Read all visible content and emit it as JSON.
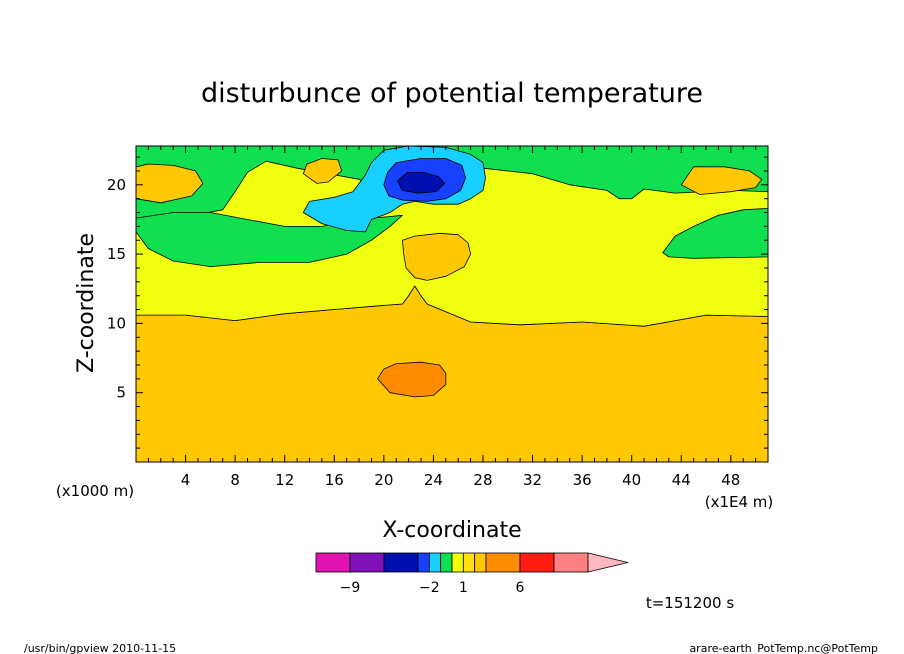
{
  "chart_data": {
    "type": "heatmap",
    "title": "disturbunce of potential temperature",
    "xlabel": "X-coordinate",
    "ylabel": "Z-coordinate",
    "x_unit": "(x1E4 m)",
    "y_unit": "(x1000 m)",
    "xlim": [
      0,
      51
    ],
    "ylim": [
      0,
      22.8
    ],
    "x_ticks": [
      4,
      8,
      12,
      16,
      20,
      24,
      28,
      32,
      36,
      40,
      44,
      48
    ],
    "y_ticks": [
      5,
      10,
      15,
      20
    ],
    "time_label": "t=151200 s",
    "colorbar": {
      "labels": [
        {
          "value": -9,
          "text": "−9"
        },
        {
          "value": -2,
          "text": "−2"
        },
        {
          "value": 1,
          "text": "1"
        },
        {
          "value": 6,
          "text": "6"
        }
      ],
      "bins": [
        {
          "lo": -12,
          "hi": -9,
          "color": "#e012b0"
        },
        {
          "lo": -9,
          "hi": -6,
          "color": "#8010b8"
        },
        {
          "lo": -6,
          "hi": -3,
          "color": "#0010b0"
        },
        {
          "lo": -3,
          "hi": -2,
          "color": "#1840ff"
        },
        {
          "lo": -2,
          "hi": -1,
          "color": "#18d0ff"
        },
        {
          "lo": -1,
          "hi": 0,
          "color": "#10e050"
        },
        {
          "lo": 0,
          "hi": 1,
          "color": "#f0ff10"
        },
        {
          "lo": 1,
          "hi": 2,
          "color": "#ffe010"
        },
        {
          "lo": 2,
          "hi": 3,
          "color": "#ffc800"
        },
        {
          "lo": 3,
          "hi": 6,
          "color": "#ff8c00"
        },
        {
          "lo": 6,
          "hi": 9,
          "color": "#ff1c10"
        },
        {
          "lo": 9,
          "hi": 12,
          "color": "#ff8080"
        }
      ],
      "overflow_color": "#ffb8c0"
    },
    "regions": [
      {
        "level": "2 to 3",
        "color": "#ffc800",
        "points": [
          [
            0,
            0
          ],
          [
            51,
            0
          ],
          [
            51,
            10.5
          ],
          [
            46,
            10.6
          ],
          [
            41,
            9.8
          ],
          [
            36,
            10.1
          ],
          [
            31,
            9.9
          ],
          [
            27,
            10.1
          ],
          [
            23.5,
            11.4
          ],
          [
            23,
            12
          ],
          [
            22.5,
            12.7
          ],
          [
            22,
            12
          ],
          [
            21.5,
            11.4
          ],
          [
            20,
            11.3
          ],
          [
            16,
            11
          ],
          [
            12,
            10.7
          ],
          [
            8,
            10.2
          ],
          [
            4,
            10.6
          ],
          [
            0,
            10.6
          ]
        ]
      },
      {
        "level": "0 to 1",
        "color": "#f0ff10",
        "points": [
          [
            0,
            10.6
          ],
          [
            4,
            10.6
          ],
          [
            8,
            10.2
          ],
          [
            12,
            10.7
          ],
          [
            16,
            11
          ],
          [
            20,
            11.3
          ],
          [
            21.5,
            11.4
          ],
          [
            22,
            12
          ],
          [
            22.5,
            12.7
          ],
          [
            23,
            12
          ],
          [
            23.5,
            11.4
          ],
          [
            27,
            10.1
          ],
          [
            31,
            9.9
          ],
          [
            36,
            10.1
          ],
          [
            41,
            9.8
          ],
          [
            46,
            10.6
          ],
          [
            51,
            10.5
          ],
          [
            51,
            22.8
          ],
          [
            0,
            22.8
          ]
        ]
      },
      {
        "level": "-1 to 0",
        "color": "#10e050",
        "points": [
          [
            0,
            22.8
          ],
          [
            51,
            22.8
          ],
          [
            51,
            19.5
          ],
          [
            48,
            19.6
          ],
          [
            43.5,
            19.4
          ],
          [
            41,
            19.7
          ],
          [
            40,
            19
          ],
          [
            39,
            19
          ],
          [
            38,
            19.6
          ],
          [
            35,
            20
          ],
          [
            32,
            20.8
          ],
          [
            28,
            21.2
          ],
          [
            27,
            21
          ],
          [
            25,
            21.5
          ],
          [
            24,
            21
          ],
          [
            23.5,
            20.2
          ],
          [
            22,
            19.6
          ],
          [
            20,
            19.5
          ],
          [
            19,
            19.8
          ],
          [
            18,
            20.4
          ],
          [
            15.5,
            20.8
          ],
          [
            13,
            21.2
          ],
          [
            10.5,
            21.7
          ],
          [
            9,
            20.9
          ],
          [
            8,
            19.5
          ],
          [
            7,
            18.2
          ],
          [
            4,
            17.7
          ],
          [
            0,
            17.6
          ]
        ]
      },
      {
        "level": "-1 to 0",
        "color": "#10e050",
        "points": [
          [
            0,
            16.6
          ],
          [
            1,
            15.4
          ],
          [
            3,
            14.5
          ],
          [
            6,
            14.1
          ],
          [
            10,
            14.4
          ],
          [
            14,
            14.4
          ],
          [
            17,
            15
          ],
          [
            19,
            16
          ],
          [
            20.5,
            17
          ],
          [
            21.5,
            17.8
          ],
          [
            18,
            17.5
          ],
          [
            15,
            17
          ],
          [
            12,
            17
          ],
          [
            9,
            17.5
          ],
          [
            6,
            18
          ],
          [
            3,
            18
          ],
          [
            0,
            17.6
          ]
        ]
      },
      {
        "level": "-1 to 0",
        "color": "#10e050",
        "points": [
          [
            51,
            14.8
          ],
          [
            45,
            14.7
          ],
          [
            43,
            14.8
          ],
          [
            42.5,
            15.1
          ],
          [
            43.5,
            16.3
          ],
          [
            45,
            17
          ],
          [
            47,
            17.8
          ],
          [
            49,
            18.2
          ],
          [
            51,
            18.3
          ]
        ]
      },
      {
        "level": "-2 to -1",
        "color": "#18d0ff",
        "points": [
          [
            13.5,
            18
          ],
          [
            15,
            17.2
          ],
          [
            17,
            16.7
          ],
          [
            18.5,
            16.6
          ],
          [
            19,
            17.5
          ],
          [
            20.5,
            18
          ],
          [
            21.5,
            18.6
          ],
          [
            22.5,
            18.8
          ],
          [
            24,
            18.6
          ],
          [
            26,
            18.6
          ],
          [
            27,
            19
          ],
          [
            28,
            19.6
          ],
          [
            28.2,
            20.5
          ],
          [
            28,
            21.6
          ],
          [
            27,
            22.2
          ],
          [
            25,
            22.7
          ],
          [
            22,
            22.8
          ],
          [
            20,
            22.5
          ],
          [
            19,
            21.6
          ],
          [
            18.5,
            20.7
          ],
          [
            17.5,
            19.5
          ],
          [
            16,
            19.1
          ],
          [
            14,
            18.8
          ]
        ]
      },
      {
        "level": "-3 to -2",
        "color": "#1840ff",
        "points": [
          [
            20,
            20
          ],
          [
            20.4,
            19.2
          ],
          [
            21.5,
            18.9
          ],
          [
            23.5,
            18.8
          ],
          [
            25,
            19
          ],
          [
            26.2,
            19.6
          ],
          [
            26.6,
            20.5
          ],
          [
            26.3,
            21.4
          ],
          [
            25,
            21.9
          ],
          [
            23,
            21.9
          ],
          [
            21,
            21.6
          ],
          [
            20.3,
            20.9
          ]
        ]
      },
      {
        "level": "-6 to -3",
        "color": "#0010b0",
        "points": [
          [
            21.1,
            20.3
          ],
          [
            21.5,
            19.6
          ],
          [
            22.7,
            19.4
          ],
          [
            24.2,
            19.5
          ],
          [
            24.9,
            20.1
          ],
          [
            24.4,
            20.6
          ],
          [
            23.2,
            20.9
          ],
          [
            21.9,
            20.9
          ]
        ]
      },
      {
        "level": "2 to 3",
        "color": "#ffc800",
        "points": [
          [
            0,
            21.3
          ],
          [
            1,
            21.5
          ],
          [
            3,
            21.4
          ],
          [
            4.8,
            21
          ],
          [
            5.4,
            20.1
          ],
          [
            4.5,
            19.2
          ],
          [
            2,
            18.7
          ],
          [
            0,
            19
          ]
        ]
      },
      {
        "level": "2 to 3",
        "color": "#ffc800",
        "points": [
          [
            13.8,
            21.5
          ],
          [
            15,
            21.9
          ],
          [
            16.3,
            21.8
          ],
          [
            16.6,
            21
          ],
          [
            15.5,
            20.2
          ],
          [
            14.6,
            20.1
          ],
          [
            13.5,
            20.8
          ]
        ]
      },
      {
        "level": "2 to 3",
        "color": "#ffc800",
        "points": [
          [
            21.5,
            16
          ],
          [
            22.5,
            16.3
          ],
          [
            24.5,
            16.5
          ],
          [
            26,
            16.4
          ],
          [
            26.8,
            15.8
          ],
          [
            27,
            15
          ],
          [
            26.5,
            14.1
          ],
          [
            25,
            13.4
          ],
          [
            23.5,
            13.1
          ],
          [
            22.5,
            13.3
          ],
          [
            21.8,
            14
          ],
          [
            21.6,
            15
          ]
        ]
      },
      {
        "level": "2 to 3",
        "color": "#ffc800",
        "points": [
          [
            44,
            20
          ],
          [
            45,
            21.3
          ],
          [
            47.5,
            21.3
          ],
          [
            49.5,
            21
          ],
          [
            50.5,
            20.4
          ],
          [
            50,
            19.8
          ],
          [
            48,
            19.5
          ],
          [
            45.5,
            19.3
          ]
        ]
      },
      {
        "level": "3 to 6",
        "color": "#ff8c00",
        "points": [
          [
            19.5,
            6
          ],
          [
            20,
            6.7
          ],
          [
            21,
            7.1
          ],
          [
            23,
            7.2
          ],
          [
            24.5,
            7
          ],
          [
            25,
            6.4
          ],
          [
            25,
            5.6
          ],
          [
            24,
            4.8
          ],
          [
            22.5,
            4.7
          ],
          [
            20.5,
            5
          ]
        ]
      }
    ]
  },
  "footer": {
    "left": "/usr/bin/gpview  2010-11-15",
    "right": "arare-earth_PotTemp.nc@PotTemp"
  }
}
